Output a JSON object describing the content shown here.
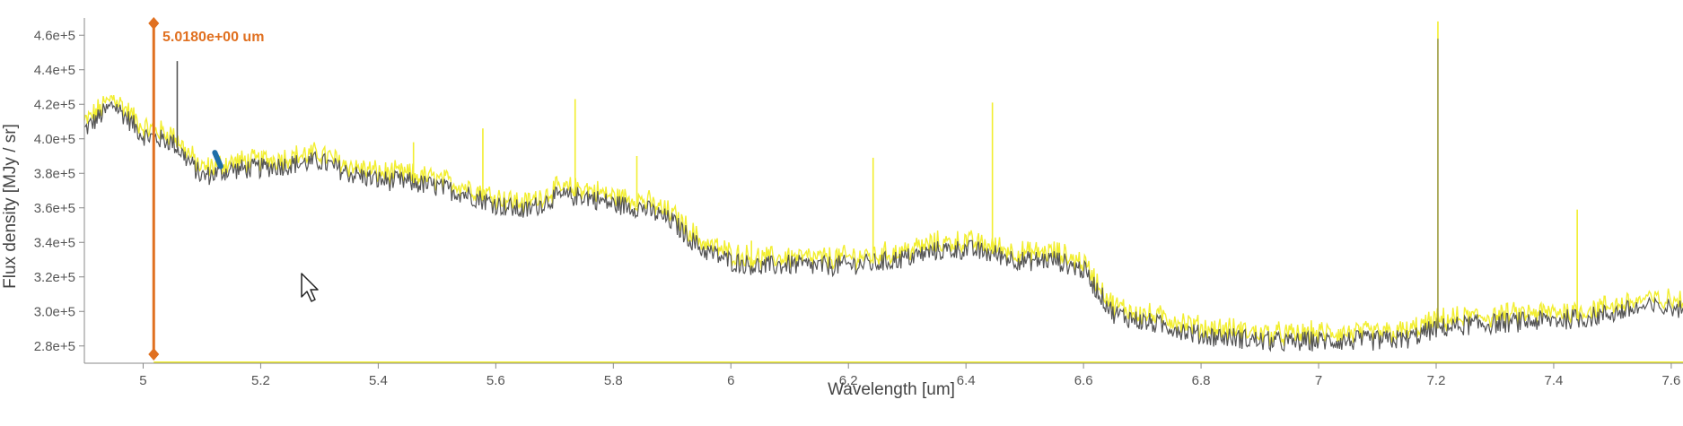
{
  "chart_data": {
    "type": "line",
    "title": "",
    "xlabel": "Wavelength [um]",
    "ylabel": "Flux density [MJy / sr]",
    "xlim": [
      4.9,
      7.62
    ],
    "ylim": [
      270000,
      470000
    ],
    "x_ticks": [
      5,
      5.2,
      5.4,
      5.6,
      5.8,
      6,
      6.2,
      6.4,
      6.6,
      6.8,
      7,
      7.2,
      7.4,
      7.6
    ],
    "x_tick_labels": [
      "5",
      "5.2",
      "5.4",
      "5.6",
      "5.8",
      "6",
      "6.2",
      "6.4",
      "6.6",
      "6.8",
      "7",
      "7.2",
      "7.4",
      "7.6"
    ],
    "y_ticks": [
      280000,
      300000,
      320000,
      340000,
      360000,
      380000,
      400000,
      420000,
      440000,
      460000
    ],
    "y_tick_labels": [
      "2.8e+5",
      "3.0e+5",
      "3.2e+5",
      "3.4e+5",
      "3.6e+5",
      "3.8e+5",
      "4.0e+5",
      "4.2e+5",
      "4.4e+5",
      "4.6e+5"
    ],
    "grid": false,
    "series": [
      {
        "color": "#f2ee30",
        "style": "overlay",
        "spikes": [
          {
            "x": 5.058,
            "y": 398000
          },
          {
            "x": 5.46,
            "y": 398000
          },
          {
            "x": 5.578,
            "y": 406000
          },
          {
            "x": 5.735,
            "y": 423000
          },
          {
            "x": 5.84,
            "y": 390000
          },
          {
            "x": 6.035,
            "y": 341000
          },
          {
            "x": 6.242,
            "y": 389000
          },
          {
            "x": 6.445,
            "y": 421000
          },
          {
            "x": 7.203,
            "y": 468000
          },
          {
            "x": 7.44,
            "y": 359000
          }
        ]
      },
      {
        "color": "#555555",
        "style": "main",
        "spikes": [
          {
            "x": 5.058,
            "y": 445000
          }
        ]
      }
    ],
    "x": [
      4.9,
      4.95,
      5.0,
      5.05,
      5.1,
      5.15,
      5.2,
      5.25,
      5.3,
      5.35,
      5.4,
      5.45,
      5.5,
      5.55,
      5.6,
      5.65,
      5.7,
      5.75,
      5.8,
      5.85,
      5.9,
      5.95,
      6.0,
      6.05,
      6.1,
      6.15,
      6.2,
      6.25,
      6.3,
      6.35,
      6.4,
      6.45,
      6.5,
      6.55,
      6.6,
      6.65,
      6.7,
      6.75,
      6.8,
      6.85,
      6.9,
      6.95,
      7.0,
      7.05,
      7.1,
      7.15,
      7.2,
      7.25,
      7.3,
      7.35,
      7.4,
      7.45,
      7.5,
      7.55,
      7.62
    ],
    "y": [
      405000,
      420000,
      402000,
      398000,
      378000,
      382000,
      383000,
      385000,
      387000,
      380000,
      376000,
      375000,
      372000,
      368000,
      362000,
      358000,
      366000,
      367000,
      362000,
      360000,
      352000,
      336000,
      329000,
      326000,
      327000,
      326000,
      327000,
      328000,
      331000,
      335000,
      336000,
      333000,
      329000,
      330000,
      324000,
      299000,
      294000,
      291000,
      286000,
      285000,
      283000,
      282000,
      283000,
      283000,
      283000,
      284000,
      290000,
      292000,
      293000,
      294000,
      295000,
      296000,
      299000,
      302000,
      302000
    ],
    "highlight": {
      "color": "#1f6fa8",
      "x": [
        5.122,
        5.132
      ],
      "y": [
        384000,
        392000
      ]
    },
    "marker": {
      "x": 5.018,
      "label": "5.0180e+00 um",
      "color": "#e07020"
    }
  }
}
